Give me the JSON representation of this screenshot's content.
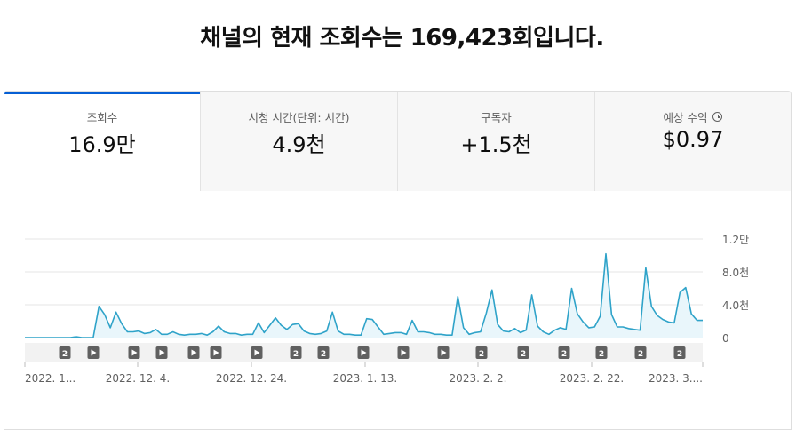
{
  "headline": "채널의 현재 조회수는 169,423회입니다.",
  "tabs": [
    {
      "label": "조회수",
      "value": "16.9만",
      "active": true
    },
    {
      "label": "시청 시간(단위: 시간)",
      "value": "4.9천",
      "active": false
    },
    {
      "label": "구독자",
      "value": "+1.5천",
      "active": false
    },
    {
      "label": "예상 수익",
      "value": "$0.97",
      "active": false,
      "icon": "info-icon"
    }
  ],
  "colors": {
    "accent": "#065fd4",
    "line": "#2fa3c9",
    "area": "#e9f6fb"
  },
  "chart_data": {
    "type": "area",
    "y_ticks": [
      "1.2만",
      "8.0천",
      "4.0천",
      "0"
    ],
    "ylim": [
      0,
      12000
    ],
    "x_tick_labels": [
      "2022. 1...",
      "2022. 12. 4.",
      "2022. 12. 24.",
      "2023. 1. 13.",
      "2023. 2. 2.",
      "2023. 2. 22.",
      "2023. 3...."
    ],
    "grid": true,
    "values": [
      0,
      0,
      0,
      0,
      0,
      0,
      0,
      0,
      0,
      100,
      0,
      0,
      0,
      3800,
      2800,
      1200,
      3100,
      1700,
      700,
      700,
      800,
      500,
      600,
      1000,
      400,
      400,
      700,
      400,
      300,
      400,
      400,
      500,
      300,
      700,
      1400,
      700,
      500,
      500,
      300,
      400,
      400,
      1800,
      600,
      1500,
      2400,
      1500,
      1000,
      1600,
      1700,
      800,
      500,
      400,
      500,
      800,
      3100,
      800,
      400,
      400,
      300,
      300,
      2300,
      2200,
      1300,
      400,
      500,
      600,
      600,
      400,
      2100,
      700,
      700,
      600,
      400,
      400,
      300,
      300,
      5000,
      1200,
      400,
      600,
      700,
      3000,
      5800,
      1600,
      800,
      700,
      1100,
      600,
      900,
      5200,
      1400,
      700,
      400,
      900,
      1200,
      1000,
      6000,
      2900,
      1900,
      1200,
      1300,
      2600,
      10200,
      2800,
      1300,
      1300,
      1100,
      1000,
      900,
      8500,
      3800,
      2700,
      2200,
      1900,
      1800,
      5500,
      6100,
      2900,
      2100,
      2100
    ],
    "markers": [
      {
        "type": "count",
        "label": "2"
      },
      {
        "type": "video",
        "label": ""
      },
      {
        "type": "video",
        "label": ""
      },
      {
        "type": "video",
        "label": ""
      },
      {
        "type": "video",
        "label": ""
      },
      {
        "type": "video",
        "label": ""
      },
      {
        "type": "video",
        "label": ""
      },
      {
        "type": "count",
        "label": "2"
      },
      {
        "type": "count",
        "label": "2"
      },
      {
        "type": "video",
        "label": ""
      },
      {
        "type": "video",
        "label": ""
      },
      {
        "type": "video",
        "label": ""
      },
      {
        "type": "count",
        "label": "2"
      },
      {
        "type": "count",
        "label": "2"
      },
      {
        "type": "count",
        "label": "2"
      },
      {
        "type": "count",
        "label": "2"
      },
      {
        "type": "count",
        "label": "2"
      },
      {
        "type": "count",
        "label": "2"
      },
      {
        "type": "count",
        "label": "2"
      }
    ]
  }
}
